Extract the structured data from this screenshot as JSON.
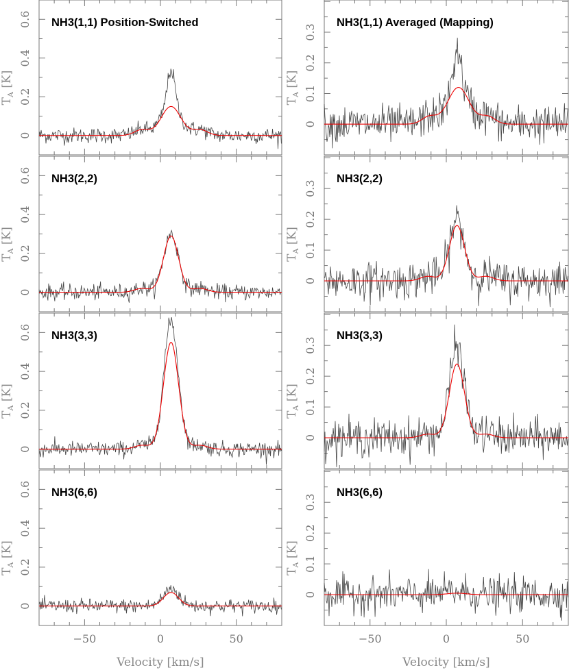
{
  "chart_data": {
    "type": "line",
    "xlabel": "Velocity [km/s]",
    "ylabel_main": "T",
    "ylabel_sub": "A",
    "ylabel_unit": "[K]",
    "xlim": [
      -80,
      80
    ],
    "x_ticks": [
      -50,
      0,
      50
    ],
    "x_tick_labels": [
      "−50",
      "0",
      "50"
    ],
    "columns": [
      {
        "ylim": [
          -0.1,
          0.7
        ],
        "y_ticks": [
          0,
          0.2,
          0.4,
          0.6
        ],
        "y_tick_labels": [
          "0",
          "0.2",
          "0.4",
          "0.6"
        ],
        "minor": 0.1
      },
      {
        "ylim": [
          -0.1,
          0.405
        ],
        "y_ticks": [
          0,
          0.1,
          0.2,
          0.3
        ],
        "y_tick_labels": [
          "0",
          "0.1",
          "0.2",
          "0.3"
        ],
        "minor": 0.05
      }
    ],
    "panels": [
      {
        "title": "NH3(1,1) Position-Switched",
        "col": 0,
        "row": 0,
        "series": [
          {
            "name": "observed",
            "color": "#444444",
            "peak": 0.34,
            "center": 7,
            "narrow_sigma": 2.5,
            "noise_rms": 0.02
          },
          {
            "name": "model fit",
            "color": "#ee0000",
            "peak": 0.15,
            "center": 7,
            "sigma": 6.5,
            "satellite": 0.03
          }
        ]
      },
      {
        "title": "NH3(2,2)",
        "col": 0,
        "row": 1,
        "series": [
          {
            "name": "observed",
            "color": "#444444",
            "peak": 0.3,
            "center": 8,
            "narrow_sigma": 3.5,
            "noise_rms": 0.02
          },
          {
            "name": "model fit",
            "color": "#ee0000",
            "peak": 0.29,
            "center": 7,
            "sigma": 5,
            "satellite": 0.02
          }
        ]
      },
      {
        "title": "NH3(3,3)",
        "col": 0,
        "row": 2,
        "series": [
          {
            "name": "observed",
            "color": "#444444",
            "peak": 0.66,
            "center": 7,
            "narrow_sigma": 4,
            "noise_rms": 0.02
          },
          {
            "name": "model fit",
            "color": "#ee0000",
            "peak": 0.55,
            "center": 7,
            "sigma": 5,
            "satellite": 0.02
          }
        ]
      },
      {
        "title": "NH3(6,6)",
        "col": 0,
        "row": 3,
        "series": [
          {
            "name": "observed",
            "color": "#444444",
            "peak": 0.09,
            "center": 8,
            "narrow_sigma": 5,
            "noise_rms": 0.018
          },
          {
            "name": "model fit",
            "color": "#ee0000",
            "peak": 0.07,
            "center": 7,
            "sigma": 5,
            "satellite": 0.0
          }
        ]
      },
      {
        "title": "NH3(1,1) Averaged (Mapping)",
        "col": 1,
        "row": 0,
        "series": [
          {
            "name": "observed",
            "color": "#444444",
            "peak": 0.24,
            "center": 7,
            "narrow_sigma": 2.5,
            "noise_rms": 0.03
          },
          {
            "name": "model fit",
            "color": "#ee0000",
            "peak": 0.12,
            "center": 8,
            "sigma": 7,
            "satellite": 0.025
          }
        ]
      },
      {
        "title": "NH3(2,2)",
        "col": 1,
        "row": 1,
        "series": [
          {
            "name": "observed",
            "color": "#444444",
            "peak": 0.2,
            "center": 7,
            "narrow_sigma": 3.5,
            "noise_rms": 0.03
          },
          {
            "name": "model fit",
            "color": "#ee0000",
            "peak": 0.18,
            "center": 7,
            "sigma": 5,
            "satellite": 0.015
          }
        ]
      },
      {
        "title": "NH3(3,3)",
        "col": 1,
        "row": 2,
        "series": [
          {
            "name": "observed",
            "color": "#444444",
            "peak": 0.3,
            "center": 7,
            "narrow_sigma": 4,
            "noise_rms": 0.03
          },
          {
            "name": "model fit",
            "color": "#ee0000",
            "peak": 0.24,
            "center": 7,
            "sigma": 5,
            "satellite": 0.012
          }
        ]
      },
      {
        "title": "NH3(6,6)",
        "col": 1,
        "row": 3,
        "series": [
          {
            "name": "observed",
            "color": "#444444",
            "peak": 0.01,
            "center": 8,
            "narrow_sigma": 6,
            "noise_rms": 0.028
          },
          {
            "name": "model fit",
            "color": "#ee0000",
            "peak": 0.005,
            "center": 7,
            "sigma": 6,
            "satellite": 0.0
          }
        ]
      }
    ]
  }
}
